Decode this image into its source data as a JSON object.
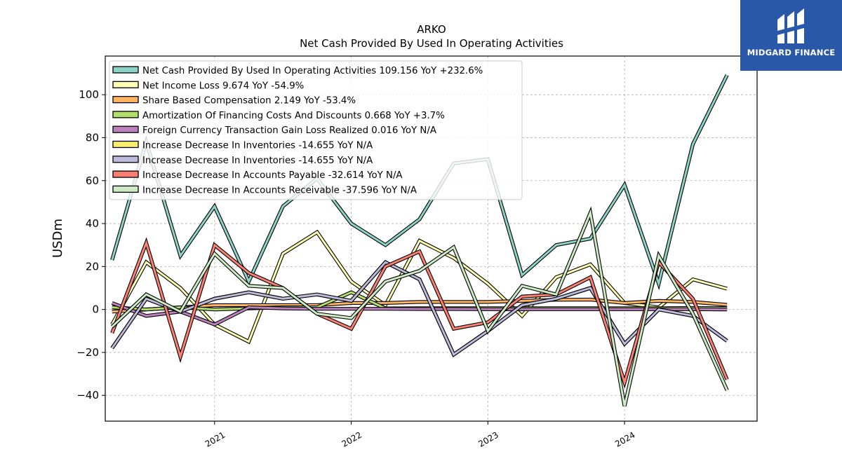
{
  "brand": {
    "name": "MIDGARD FINANCE"
  },
  "chart_data": {
    "type": "line",
    "title": "ARKO",
    "subtitle": "Net Cash Provided By Used In Operating Activities",
    "xlabel": "",
    "ylabel": "USDm",
    "ylim": [
      -52,
      118
    ],
    "xlim": [
      2020.2,
      2024.97
    ],
    "yticks": [
      -40,
      -20,
      0,
      20,
      40,
      60,
      80,
      100
    ],
    "xticks": [
      2021,
      2022,
      2023,
      2024
    ],
    "xtick_labels": [
      "2021",
      "2022",
      "2023",
      "2024"
    ],
    "ytick_labels": [
      "−40",
      "−20",
      "0",
      "20",
      "40",
      "60",
      "80",
      "100"
    ],
    "grid": true,
    "legend_position": "top-left",
    "x": [
      2020.25,
      2020.5,
      2020.75,
      2021.0,
      2021.25,
      2021.5,
      2021.75,
      2022.0,
      2022.25,
      2022.5,
      2022.75,
      2023.0,
      2023.25,
      2023.5,
      2023.75,
      2024.0,
      2024.25,
      2024.5,
      2024.75
    ],
    "series": [
      {
        "name": "Net Cash Provided By Used In Operating Activities",
        "legend": "Net Cash Provided By Used In Operating Activities  109.156 YoY +232.6%",
        "color": "#8dd3c7",
        "values": [
          23,
          78,
          25,
          48,
          13,
          48,
          61,
          40,
          30,
          42,
          68,
          70,
          16,
          30,
          33,
          58,
          12,
          77,
          109.156
        ]
      },
      {
        "name": "Net Income Loss",
        "legend": "Net Income Loss  9.674 YoY -54.9%",
        "color": "#ffffb3",
        "values": [
          -7,
          22,
          10,
          -7,
          -15,
          26,
          36,
          13,
          2,
          32,
          24,
          12,
          -3,
          15,
          21,
          3,
          1,
          14,
          9.674
        ]
      },
      {
        "name": "Share Based Compensation",
        "legend": "Share Based Compensation  2.149 YoY -53.4%",
        "color": "#fdb462",
        "values": [
          -1,
          0,
          1,
          2,
          2,
          2,
          2,
          3,
          3,
          3.5,
          3.5,
          3.5,
          4,
          4.5,
          4.6,
          3,
          4,
          3.5,
          2.149
        ]
      },
      {
        "name": "Amortization Of Financing Costs And Discounts",
        "legend": "Amortization Of Financing Costs And Discounts  0.668 YoY +3.7%",
        "color": "#b3de69",
        "values": [
          1,
          0,
          1,
          0,
          0.5,
          1,
          1,
          8,
          0.5,
          0.6,
          0.6,
          0.6,
          0.6,
          0.6,
          0.6,
          0.6,
          0.6,
          0.7,
          0.668
        ]
      },
      {
        "name": "Foreign Currency Transaction Gain Loss Realized",
        "legend": "Foreign Currency Transaction Gain Loss Realized  0.016 YoY N/A",
        "color": "#bc80bd",
        "values": [
          3,
          -3,
          -1,
          -7,
          1,
          0.5,
          0.3,
          0.3,
          0.3,
          0.2,
          0.2,
          0.1,
          0.1,
          0.1,
          0.1,
          0.1,
          0.1,
          0.1,
          0.016
        ]
      },
      {
        "name": "Increase Decrease In Inventories",
        "legend": "Increase Decrease In Inventories  -14.655 YoY N/A",
        "color": "#ffed6f",
        "values": [
          -18,
          5,
          -1,
          5,
          8,
          5,
          7,
          4,
          22,
          14,
          -21,
          -10,
          2,
          5,
          10,
          -16,
          0,
          -3,
          -14.655
        ]
      },
      {
        "name": "Increase Decrease In Inventories",
        "legend": "Increase Decrease In Inventories  -14.655 YoY N/A",
        "color": "#bebada",
        "values": [
          -18,
          5,
          -1,
          5,
          8,
          5,
          7,
          4,
          22,
          14,
          -21,
          -10,
          2,
          5,
          10,
          -16,
          0,
          -3,
          -14.655
        ]
      },
      {
        "name": "Increase Decrease In Accounts Payable",
        "legend": "Increase Decrease In Accounts Payable  -32.614 YoY N/A",
        "color": "#fb8072",
        "values": [
          -11,
          31,
          -22,
          30,
          17,
          10,
          -2,
          -9,
          20,
          27,
          -9,
          -6,
          6,
          7,
          15,
          -34,
          22,
          5,
          -32.614
        ]
      },
      {
        "name": "Increase Decrease In Accounts Receivable",
        "legend": "Increase Decrease In Accounts Receivable  -37.596 YoY N/A",
        "color": "#ccebc5",
        "values": [
          -8,
          7,
          -1,
          26,
          11,
          10,
          -2,
          -4,
          13,
          18,
          29,
          -10,
          11,
          7,
          45,
          -45,
          25,
          -2,
          -37.596
        ]
      }
    ]
  }
}
